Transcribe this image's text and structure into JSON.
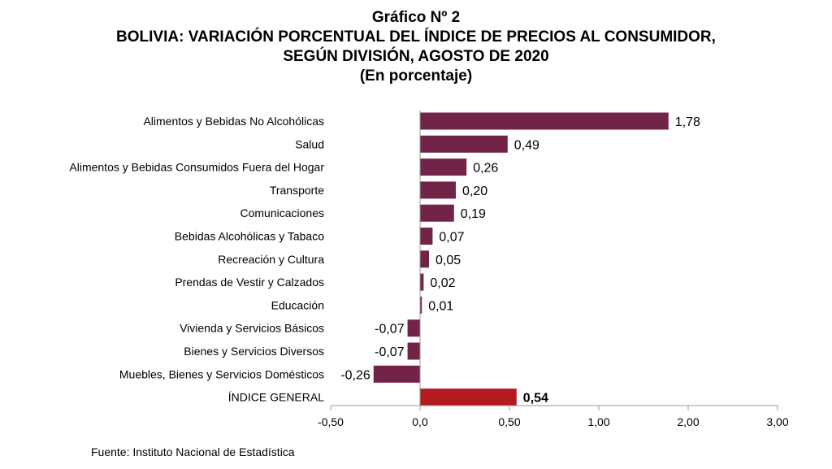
{
  "title_lines": [
    "Gráfico Nº 2",
    "BOLIVIA: VARIACIÓN PORCENTUAL DEL ÍNDICE DE PRECIOS AL CONSUMIDOR,",
    "SEGÚN DIVISIÓN, AGOSTO DE 2020",
    "(En porcentaje)"
  ],
  "source": "Fuente: Instituto Nacional de Estadística",
  "colors": {
    "bar": "#722448",
    "highlight": "#b3191e",
    "axis": "#999999"
  },
  "chart_data": {
    "type": "bar",
    "orientation": "horizontal",
    "title": "Gráfico Nº 2 BOLIVIA: VARIACIÓN PORCENTUAL DEL ÍNDICE DE PRECIOS AL CONSUMIDOR, SEGÚN DIVISIÓN, AGOSTO DE 2020",
    "subtitle": "(En porcentaje)",
    "categories": [
      "Alimentos y Bebidas No Alcohólicas",
      "Salud",
      "Alimentos y Bebidas Consumidos Fuera del Hogar",
      "Transporte",
      "Comunicaciones",
      "Bebidas Alcohólicas y Tabaco",
      "Recreación y Cultura",
      "Prendas de Vestir y Calzados",
      "Educación",
      "Vivienda y Servicios Básicos",
      "Bienes y Servicios Diversos",
      "Muebles, Bienes y Servicios Domésticos",
      "ÍNDICE GENERAL"
    ],
    "values": [
      1.78,
      0.49,
      0.26,
      0.2,
      0.19,
      0.07,
      0.05,
      0.02,
      0.01,
      -0.07,
      -0.07,
      -0.26,
      0.54
    ],
    "value_labels": [
      "1,78",
      "0,49",
      "0,26",
      "0,20",
      "0,19",
      "0,07",
      "0,05",
      "0,02",
      "0,01",
      "-0,07",
      "-0,07",
      "-0,26",
      "0,54"
    ],
    "highlight_index": 12,
    "xlim": [
      -0.5,
      3.0
    ],
    "xticks": [
      -0.5,
      0.0,
      0.5,
      1.0,
      2.0,
      3.0
    ],
    "xtick_labels": [
      "-0,50",
      "0,0",
      "0,50",
      "1,00",
      "2,00",
      "3,00"
    ],
    "grid": false,
    "legend": "none"
  }
}
